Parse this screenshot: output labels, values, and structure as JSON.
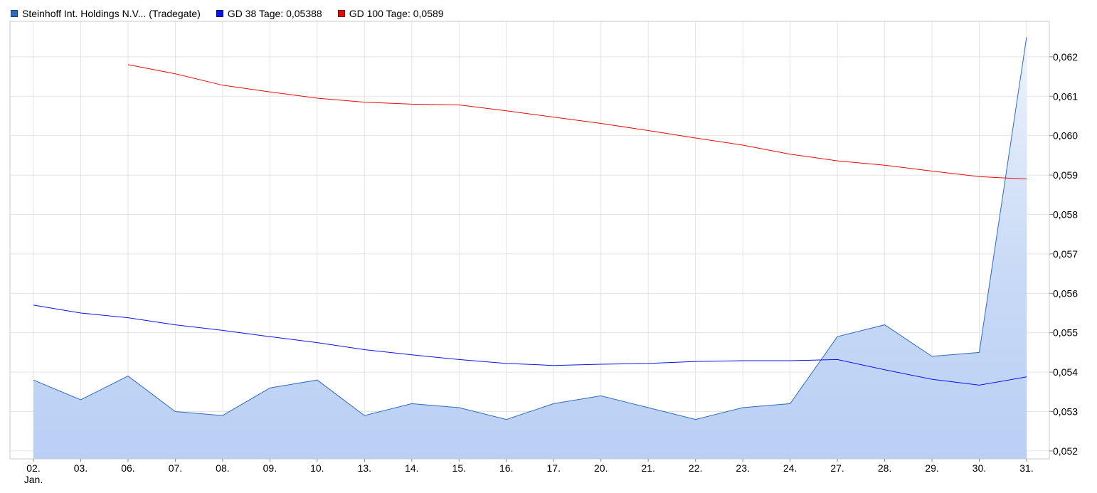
{
  "legend": [
    {
      "label": "Steinhoff Int. Holdings N.V... (Tradegate)",
      "color": "#2f6bbf"
    },
    {
      "label": "GD 38 Tage: 0,05388",
      "color": "#0a14e6"
    },
    {
      "label": "GD 100 Tage: 0,0589",
      "color": "#e60a0a"
    }
  ],
  "chart_data": {
    "type": "line",
    "categories": [
      "02.",
      "03.",
      "06.",
      "07.",
      "08.",
      "09.",
      "10.",
      "13.",
      "14.",
      "15.",
      "16.",
      "17.",
      "20.",
      "21.",
      "22.",
      "23.",
      "24.",
      "27.",
      "28.",
      "29.",
      "30.",
      "31."
    ],
    "x_sublabel": "Jan.",
    "ylim": [
      0.0518,
      0.0629
    ],
    "y_ticks": [
      "0,052",
      "0,053",
      "0,054",
      "0,055",
      "0,056",
      "0,057",
      "0,058",
      "0,059",
      "0,060",
      "0,061",
      "0,062"
    ],
    "y_tick_values": [
      0.052,
      0.053,
      0.054,
      0.055,
      0.056,
      0.057,
      0.058,
      0.059,
      0.06,
      0.061,
      0.062
    ],
    "grid": true,
    "legend_position": "top-left",
    "series": [
      {
        "name": "Steinhoff Int. Holdings N.V... (Tradegate)",
        "style": "area",
        "color": "#2f6bbf",
        "values": [
          0.0538,
          0.0533,
          0.0539,
          0.053,
          0.0529,
          0.0536,
          0.0538,
          0.0529,
          0.0532,
          0.0531,
          0.0528,
          0.0532,
          0.0534,
          0.0531,
          0.0528,
          0.0531,
          0.0532,
          0.0549,
          0.0552,
          0.0544,
          0.0545,
          0.0625
        ]
      },
      {
        "name": "GD 38 Tage: 0,05388",
        "style": "line",
        "color": "#0a14e6",
        "values": [
          0.0557,
          0.0555,
          0.05538,
          0.0552,
          0.05506,
          0.0549,
          0.05475,
          0.05457,
          0.05444,
          0.05432,
          0.05422,
          0.05417,
          0.0542,
          0.05422,
          0.05427,
          0.05429,
          0.05429,
          0.05432,
          0.05406,
          0.05382,
          0.05367,
          0.05388
        ]
      },
      {
        "name": "GD 100 Tage: 0,0589",
        "style": "line",
        "color": "#e60a0a",
        "values": [
          null,
          null,
          0.0618,
          0.06157,
          0.06128,
          0.06111,
          0.06095,
          0.06085,
          0.0608,
          0.06078,
          0.06063,
          0.06047,
          0.06031,
          0.06013,
          0.05994,
          0.05976,
          0.05953,
          0.05936,
          0.05925,
          0.0591,
          0.05896,
          0.0589
        ]
      }
    ]
  }
}
